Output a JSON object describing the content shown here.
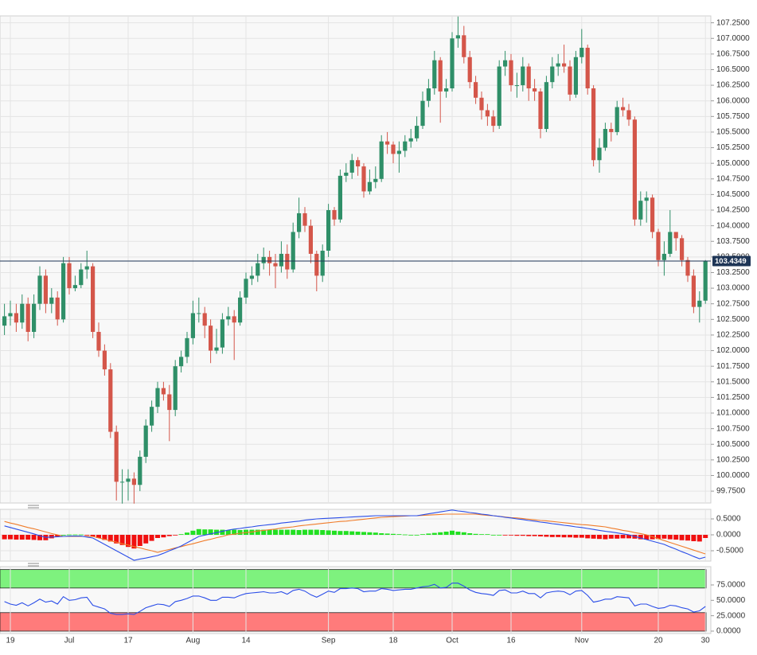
{
  "chart_data": [
    {
      "type": "candlestick",
      "categories": [
        null,
        "19",
        null,
        null,
        null,
        null,
        null,
        null,
        null,
        null,
        null,
        "Jul",
        null,
        null,
        null,
        null,
        null,
        null,
        null,
        null,
        null,
        "17",
        null,
        null,
        null,
        null,
        null,
        null,
        null,
        null,
        null,
        null,
        "Aug",
        null,
        null,
        null,
        null,
        null,
        null,
        null,
        null,
        "14",
        null,
        null,
        null,
        null,
        null,
        null,
        null,
        null,
        null,
        null,
        null,
        null,
        null,
        "Sep",
        null,
        null,
        null,
        null,
        null,
        null,
        null,
        null,
        null,
        null,
        "18",
        null,
        null,
        null,
        null,
        null,
        null,
        null,
        null,
        null,
        "Oct",
        null,
        null,
        null,
        null,
        null,
        null,
        null,
        null,
        null,
        "16",
        null,
        null,
        null,
        null,
        null,
        null,
        null,
        null,
        null,
        null,
        null,
        "Nov",
        null,
        null,
        null,
        null,
        null,
        null,
        null,
        null,
        null,
        null,
        null,
        null,
        "20",
        null,
        null,
        null,
        null,
        null,
        null,
        null,
        "30"
      ],
      "open": [
        102.4,
        102.55,
        102.6,
        102.45,
        102.75,
        102.3,
        102.75,
        103.2,
        102.75,
        102.85,
        102.5,
        103.4,
        103.0,
        103.05,
        103.3,
        103.35,
        102.3,
        102.0,
        101.7,
        100.7,
        99.9,
        99.9,
        99.95,
        99.85,
        100.3,
        100.8,
        101.1,
        101.4,
        101.3,
        101.05,
        101.75,
        101.9,
        102.2,
        102.6,
        102.6,
        102.4,
        102.0,
        102.05,
        102.5,
        102.55,
        102.45,
        102.85,
        103.15,
        103.2,
        103.4,
        103.5,
        103.4,
        103.35,
        103.55,
        103.3,
        103.9,
        104.2,
        104.0,
        103.55,
        103.2,
        103.6,
        104.25,
        104.1,
        104.8,
        104.85,
        105.05,
        104.95,
        104.55,
        104.7,
        104.75,
        105.35,
        105.3,
        105.15,
        105.2,
        105.35,
        105.4,
        105.6,
        106.0,
        106.2,
        106.65,
        106.15,
        106.2,
        107.0,
        107.05,
        106.7,
        106.3,
        106.05,
        105.85,
        105.75,
        105.6,
        106.55,
        106.65,
        106.25,
        106.25,
        106.55,
        106.2,
        106.15,
        105.55,
        106.3,
        106.55,
        106.6,
        106.55,
        106.1,
        106.7,
        106.85,
        106.2,
        105.05,
        105.25,
        105.55,
        105.5,
        105.9,
        105.85,
        105.7,
        104.1,
        104.4,
        104.45,
        103.9,
        103.45,
        103.55,
        103.9,
        103.8,
        103.45,
        103.2,
        102.7,
        102.8
      ],
      "high": [
        102.75,
        102.8,
        102.75,
        102.9,
        102.85,
        102.9,
        103.35,
        103.3,
        103.0,
        102.95,
        103.5,
        103.5,
        103.2,
        103.4,
        103.6,
        103.4,
        102.45,
        102.1,
        101.8,
        100.8,
        100.1,
        100.1,
        100.05,
        100.4,
        100.9,
        101.2,
        101.5,
        101.5,
        101.45,
        101.85,
        102.0,
        102.3,
        102.8,
        102.85,
        102.7,
        102.5,
        102.35,
        102.6,
        102.7,
        102.65,
        102.95,
        103.25,
        103.35,
        103.55,
        103.65,
        103.6,
        103.55,
        103.75,
        103.7,
        104.05,
        104.45,
        104.3,
        104.1,
        103.6,
        103.7,
        104.35,
        104.3,
        104.9,
        105.0,
        105.15,
        105.1,
        105.0,
        104.9,
        104.95,
        105.45,
        105.5,
        105.35,
        105.35,
        105.45,
        105.55,
        105.75,
        106.15,
        106.35,
        106.8,
        106.7,
        106.35,
        107.1,
        107.35,
        107.2,
        106.8,
        106.4,
        106.15,
        105.95,
        105.85,
        106.65,
        106.8,
        106.75,
        106.45,
        106.7,
        106.6,
        106.35,
        106.2,
        106.4,
        106.7,
        106.75,
        106.9,
        106.65,
        106.8,
        107.15,
        106.9,
        106.25,
        105.4,
        105.65,
        105.65,
        106.0,
        106.05,
        105.95,
        105.75,
        104.55,
        104.55,
        104.5,
        103.95,
        103.75,
        104.25,
        103.9,
        103.85,
        103.5,
        103.3,
        102.95,
        103.45
      ],
      "low": [
        102.25,
        102.4,
        102.3,
        102.35,
        102.15,
        102.2,
        102.65,
        102.6,
        102.6,
        102.4,
        102.45,
        102.9,
        102.95,
        103.0,
        103.15,
        102.2,
        101.9,
        101.6,
        100.6,
        99.6,
        99.55,
        99.6,
        99.55,
        99.75,
        100.2,
        100.7,
        101.0,
        101.2,
        100.55,
        100.95,
        101.65,
        101.8,
        102.1,
        102.45,
        102.2,
        101.8,
        101.95,
        101.95,
        102.4,
        101.85,
        102.4,
        102.75,
        103.05,
        103.1,
        103.3,
        103.2,
        103.0,
        103.25,
        103.15,
        103.25,
        103.8,
        103.9,
        103.4,
        102.95,
        103.1,
        103.5,
        104.0,
        104.05,
        104.7,
        104.75,
        104.8,
        104.45,
        104.5,
        104.6,
        104.7,
        105.15,
        105.0,
        104.85,
        105.1,
        105.25,
        105.35,
        105.55,
        105.9,
        106.1,
        105.65,
        106.05,
        106.15,
        106.85,
        106.6,
        106.2,
        105.95,
        105.7,
        105.6,
        105.5,
        105.55,
        106.4,
        106.15,
        106.05,
        106.15,
        106.0,
        106.0,
        105.4,
        105.5,
        106.2,
        106.4,
        106.45,
        106.0,
        106.05,
        106.6,
        106.1,
        104.95,
        104.85,
        105.2,
        105.35,
        105.45,
        105.75,
        105.6,
        104.0,
        104.0,
        104.05,
        103.8,
        103.35,
        103.2,
        103.5,
        103.6,
        103.35,
        103.1,
        102.6,
        102.45,
        102.75
      ],
      "close": [
        102.55,
        102.6,
        102.45,
        102.75,
        102.3,
        102.75,
        103.2,
        102.75,
        102.85,
        102.5,
        103.4,
        103.0,
        103.05,
        103.3,
        103.35,
        102.3,
        102.0,
        101.7,
        100.7,
        99.9,
        99.9,
        99.95,
        99.85,
        100.3,
        100.8,
        101.1,
        101.4,
        101.3,
        101.05,
        101.75,
        101.9,
        102.2,
        102.6,
        102.6,
        102.4,
        102.0,
        102.05,
        102.5,
        102.55,
        102.45,
        102.85,
        103.15,
        103.2,
        103.4,
        103.5,
        103.4,
        103.35,
        103.55,
        103.3,
        103.9,
        104.2,
        104.0,
        103.55,
        103.2,
        103.6,
        104.25,
        104.1,
        104.8,
        104.85,
        105.05,
        104.95,
        104.55,
        104.7,
        104.75,
        105.35,
        105.3,
        105.15,
        105.2,
        105.35,
        105.4,
        105.6,
        106.0,
        106.2,
        106.65,
        106.15,
        106.2,
        107.0,
        107.05,
        106.7,
        106.3,
        106.05,
        105.85,
        105.75,
        105.6,
        106.55,
        106.65,
        106.25,
        106.25,
        106.55,
        106.2,
        106.15,
        105.55,
        106.3,
        106.55,
        106.6,
        106.55,
        106.1,
        106.7,
        106.85,
        106.2,
        105.05,
        105.25,
        105.55,
        105.5,
        105.9,
        105.85,
        105.7,
        104.1,
        104.4,
        104.45,
        103.9,
        103.45,
        103.55,
        103.9,
        103.8,
        103.45,
        103.2,
        102.7,
        102.8,
        103.4349
      ],
      "up_color": "#2f8f68",
      "down_color": "#d4564a",
      "price_line_color": "#1e3556",
      "ylim": [
        99.56,
        107.36
      ],
      "yticks": [
        {
          "value": 99.75,
          "label": "99.7500"
        },
        {
          "value": 100.0,
          "label": "100.0000"
        },
        {
          "value": 100.25,
          "label": "100.2500"
        },
        {
          "value": 100.5,
          "label": "100.5000"
        },
        {
          "value": 100.75,
          "label": "100.7500"
        },
        {
          "value": 101.0,
          "label": "101.0000"
        },
        {
          "value": 101.25,
          "label": "101.2500"
        },
        {
          "value": 101.5,
          "label": "101.5000"
        },
        {
          "value": 101.75,
          "label": "101.7500"
        },
        {
          "value": 102.0,
          "label": "102.0000"
        },
        {
          "value": 102.25,
          "label": "102.2500"
        },
        {
          "value": 102.5,
          "label": "102.5000"
        },
        {
          "value": 102.75,
          "label": "102.7500"
        },
        {
          "value": 103.0,
          "label": "103.0000"
        },
        {
          "value": 103.25,
          "label": "103.2500"
        },
        {
          "value": 103.5,
          "label": "103.5000"
        },
        {
          "value": 103.75,
          "label": "103.7500"
        },
        {
          "value": 104.0,
          "label": "104.0000"
        },
        {
          "value": 104.25,
          "label": "104.2500"
        },
        {
          "value": 104.5,
          "label": "104.5000"
        },
        {
          "value": 104.75,
          "label": "104.7500"
        },
        {
          "value": 105.0,
          "label": "105.0000"
        },
        {
          "value": 105.25,
          "label": "105.2500"
        },
        {
          "value": 105.5,
          "label": "105.5000"
        },
        {
          "value": 105.75,
          "label": "105.7500"
        },
        {
          "value": 106.0,
          "label": "106.0000"
        },
        {
          "value": 106.25,
          "label": "106.2500"
        },
        {
          "value": 106.5,
          "label": "106.5000"
        },
        {
          "value": 106.75,
          "label": "106.7500"
        },
        {
          "value": 107.0,
          "label": "107.0000"
        },
        {
          "value": 107.25,
          "label": "107.2500"
        }
      ],
      "grid": true
    },
    {
      "type": "macd",
      "macd": [
        0.28,
        0.23,
        0.18,
        0.13,
        0.08,
        0.03,
        -0.03,
        -0.08,
        -0.07,
        -0.06,
        -0.05,
        -0.04,
        -0.04,
        -0.04,
        -0.07,
        -0.1,
        -0.2,
        -0.3,
        -0.4,
        -0.5,
        -0.6,
        -0.7,
        -0.8,
        -0.76,
        -0.73,
        -0.69,
        -0.65,
        -0.58,
        -0.5,
        -0.43,
        -0.35,
        -0.25,
        -0.15,
        -0.05,
        -0.01,
        0.03,
        0.07,
        0.11,
        0.15,
        0.18,
        0.2,
        0.23,
        0.25,
        0.28,
        0.3,
        0.32,
        0.34,
        0.37,
        0.39,
        0.41,
        0.43,
        0.46,
        0.48,
        0.5,
        0.51,
        0.52,
        0.53,
        0.54,
        0.55,
        0.56,
        0.57,
        0.58,
        0.59,
        0.6,
        0.6,
        0.6,
        0.6,
        0.6,
        0.6,
        0.6,
        0.6,
        0.63,
        0.66,
        0.69,
        0.72,
        0.75,
        0.78,
        0.75,
        0.73,
        0.7,
        0.68,
        0.65,
        0.63,
        0.6,
        0.58,
        0.55,
        0.53,
        0.5,
        0.48,
        0.45,
        0.43,
        0.4,
        0.38,
        0.35,
        0.33,
        0.3,
        0.28,
        0.25,
        0.23,
        0.2,
        0.17,
        0.14,
        0.11,
        0.09,
        0.06,
        0.03,
        0.0,
        -0.05,
        -0.1,
        -0.15,
        -0.2,
        -0.25,
        -0.3,
        -0.38,
        -0.45,
        -0.53,
        -0.6,
        -0.68,
        -0.75,
        -0.7
      ],
      "signal": [
        0.42,
        0.37,
        0.33,
        0.28,
        0.23,
        0.19,
        0.14,
        0.09,
        0.04,
        0.0,
        -0.05,
        -0.05,
        -0.05,
        -0.05,
        -0.05,
        -0.05,
        -0.1,
        -0.14,
        -0.19,
        -0.23,
        -0.28,
        -0.32,
        -0.37,
        -0.41,
        -0.46,
        -0.5,
        -0.55,
        -0.5,
        -0.46,
        -0.41,
        -0.37,
        -0.32,
        -0.28,
        -0.23,
        -0.18,
        -0.14,
        -0.09,
        -0.05,
        0.0,
        0.02,
        0.05,
        0.07,
        0.09,
        0.12,
        0.14,
        0.16,
        0.18,
        0.21,
        0.23,
        0.25,
        0.28,
        0.3,
        0.32,
        0.34,
        0.36,
        0.38,
        0.4,
        0.42,
        0.43,
        0.45,
        0.47,
        0.49,
        0.51,
        0.53,
        0.55,
        0.56,
        0.57,
        0.58,
        0.59,
        0.6,
        0.6,
        0.61,
        0.62,
        0.63,
        0.64,
        0.65,
        0.65,
        0.65,
        0.65,
        0.65,
        0.65,
        0.63,
        0.61,
        0.6,
        0.58,
        0.56,
        0.54,
        0.53,
        0.51,
        0.49,
        0.47,
        0.45,
        0.44,
        0.42,
        0.4,
        0.38,
        0.36,
        0.34,
        0.32,
        0.31,
        0.29,
        0.27,
        0.25,
        0.21,
        0.18,
        0.14,
        0.11,
        0.07,
        0.04,
        0.0,
        -0.06,
        -0.12,
        -0.18,
        -0.24,
        -0.3,
        -0.36,
        -0.42,
        -0.48,
        -0.54,
        -0.6
      ],
      "histogram": [
        -0.14,
        -0.14,
        -0.15,
        -0.15,
        -0.15,
        -0.16,
        -0.17,
        -0.17,
        -0.11,
        -0.06,
        0.0,
        0.01,
        0.01,
        0.01,
        -0.02,
        -0.05,
        -0.1,
        -0.16,
        -0.21,
        -0.27,
        -0.32,
        -0.38,
        -0.43,
        -0.35,
        -0.27,
        -0.19,
        -0.1,
        -0.08,
        -0.04,
        -0.02,
        0.02,
        0.07,
        0.13,
        0.18,
        0.17,
        0.17,
        0.16,
        0.16,
        0.15,
        0.16,
        0.15,
        0.16,
        0.16,
        0.16,
        0.16,
        0.16,
        0.16,
        0.16,
        0.16,
        0.16,
        0.15,
        0.16,
        0.16,
        0.16,
        0.15,
        0.14,
        0.13,
        0.12,
        0.12,
        0.11,
        0.1,
        0.09,
        0.08,
        0.07,
        0.05,
        0.04,
        0.03,
        0.02,
        0.01,
        0.0,
        0.0,
        0.02,
        0.04,
        0.06,
        0.08,
        0.1,
        0.13,
        0.1,
        0.08,
        0.05,
        0.03,
        0.02,
        0.02,
        0.0,
        0.0,
        -0.01,
        -0.01,
        -0.03,
        -0.03,
        -0.04,
        -0.04,
        -0.05,
        -0.06,
        -0.07,
        -0.07,
        -0.08,
        -0.08,
        -0.09,
        -0.09,
        -0.11,
        -0.12,
        -0.13,
        -0.14,
        -0.12,
        -0.12,
        -0.11,
        -0.11,
        -0.12,
        -0.14,
        -0.15,
        -0.14,
        -0.13,
        -0.12,
        -0.14,
        -0.15,
        -0.17,
        -0.18,
        -0.2,
        -0.21,
        -0.1
      ],
      "macd_color": "#2b4ee8",
      "signal_color": "#f07c2a",
      "pos_color": "#22e022",
      "neg_color": "#f01010",
      "ylim": [
        -0.825,
        0.8
      ],
      "yticks": [
        {
          "value": 0.5,
          "label": "0.5000"
        },
        {
          "value": 0.0,
          "label": "0.0000"
        },
        {
          "value": -0.5,
          "label": "-0.5000"
        }
      ]
    },
    {
      "type": "rsi",
      "values": [
        48,
        44,
        42,
        46,
        41,
        46,
        52,
        47,
        49,
        44,
        56,
        50,
        51,
        54,
        55,
        42,
        39,
        36,
        29,
        27,
        27,
        28,
        27,
        32,
        38,
        41,
        44,
        43,
        40,
        48,
        50,
        53,
        57,
        57,
        54,
        50,
        50,
        55,
        55,
        54,
        58,
        61,
        62,
        63,
        64,
        62,
        62,
        64,
        60,
        66,
        68,
        65,
        59,
        55,
        60,
        65,
        63,
        69,
        69,
        70,
        69,
        64,
        65,
        65,
        69,
        68,
        66,
        67,
        68,
        68,
        70,
        72,
        73,
        76,
        70,
        71,
        78,
        78,
        73,
        67,
        63,
        61,
        60,
        58,
        66,
        67,
        62,
        62,
        65,
        61,
        61,
        54,
        62,
        64,
        65,
        64,
        59,
        65,
        66,
        58,
        47,
        49,
        52,
        52,
        56,
        55,
        54,
        41,
        44,
        44,
        40,
        37,
        38,
        42,
        41,
        38,
        36,
        31,
        33,
        40
      ],
      "color": "#2b4ee8",
      "bands": [
        {
          "range": [
            70,
            100
          ],
          "color": "#7ef27e"
        },
        {
          "range": [
            0,
            30
          ],
          "color": "#ff7b7b"
        }
      ],
      "ylim": [
        -3.9,
        104.7
      ],
      "yticks": [
        {
          "value": 75,
          "label": "75.0000"
        },
        {
          "value": 50,
          "label": "50.0000"
        },
        {
          "value": 25,
          "label": "25.0000"
        },
        {
          "value": 0,
          "label": "0.0000"
        }
      ]
    }
  ]
}
